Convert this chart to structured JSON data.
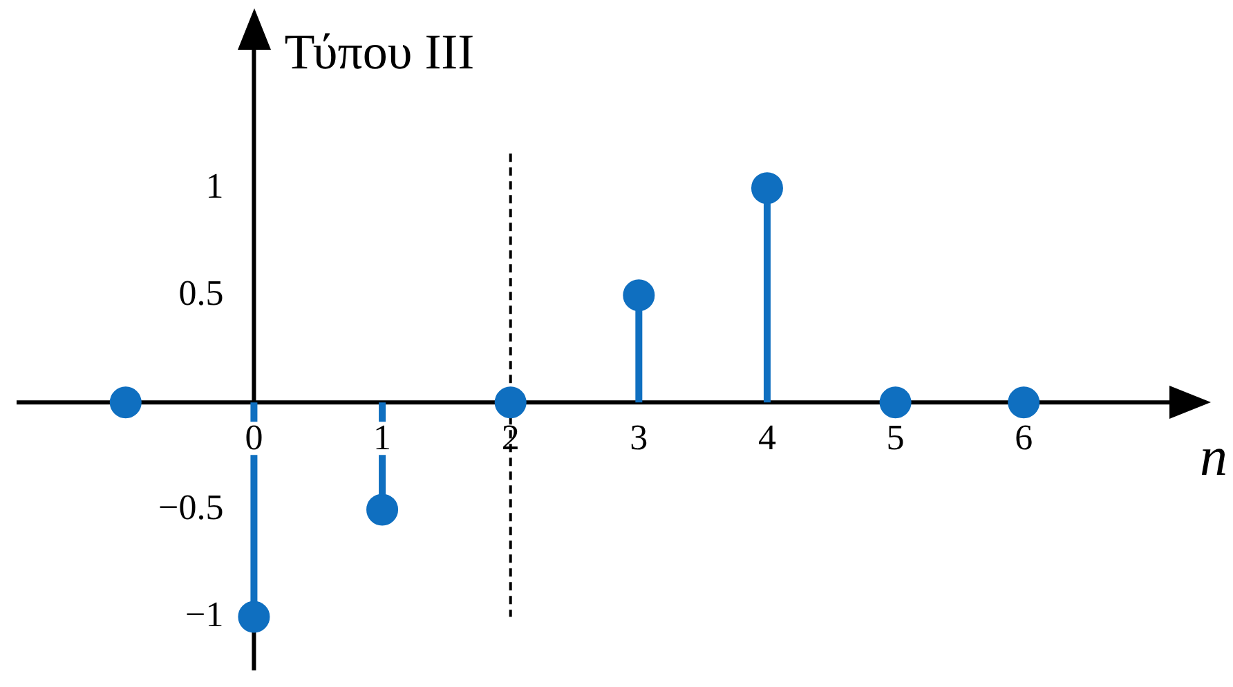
{
  "chart_data": {
    "type": "lollipop",
    "ylabel": "Τύπου III",
    "xlabel": "n",
    "x": [
      -1,
      0,
      1,
      2,
      3,
      4,
      5,
      6
    ],
    "series": [
      {
        "color": "#0f6fc0",
        "values": [
          0,
          -1,
          -0.5,
          0,
          0.5,
          1,
          0,
          0
        ]
      }
    ],
    "xlim": [
      -1.85,
      7.2
    ],
    "xticks": [
      0,
      1,
      2,
      3,
      4,
      5,
      6
    ],
    "ylim": [
      -1.25,
      1.8
    ],
    "yticks": [
      {
        "value": -1,
        "label": "−1"
      },
      {
        "value": -0.5,
        "label": "−0.5"
      },
      0.5,
      1
    ],
    "ref_lines": [
      {
        "axis": "x",
        "value": 2,
        "color": "#000000",
        "line_style": "dashed"
      }
    ],
    "marker": "circle",
    "grid": false,
    "legend": false
  }
}
